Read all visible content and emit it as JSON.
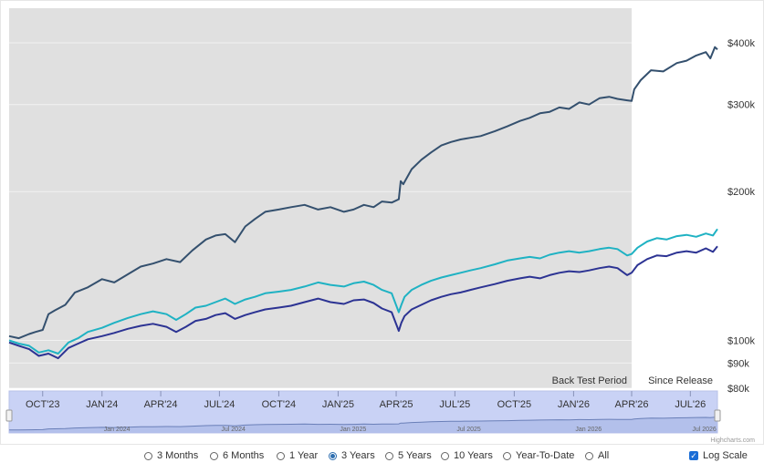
{
  "chart_data": {
    "type": "line",
    "y_scale": "log",
    "y_ticks": [
      {
        "value": 80000,
        "label": "$80k"
      },
      {
        "value": 90000,
        "label": "$90k"
      },
      {
        "value": 100000,
        "label": "$100k"
      },
      {
        "value": 200000,
        "label": "$200k"
      },
      {
        "value": 300000,
        "label": "$300k"
      },
      {
        "value": 400000,
        "label": "$400k"
      }
    ],
    "x_ticks": [
      "OCT'23",
      "JAN'24",
      "APR'24",
      "JUL'24",
      "OCT'24",
      "JAN'25",
      "APR'25",
      "JUL'25",
      "OCT'25",
      "JAN'26",
      "APR'26",
      "JUL'26"
    ],
    "x_tick_dates": [
      "2023-10-01",
      "2024-01-01",
      "2024-04-01",
      "2024-07-01",
      "2024-10-01",
      "2025-01-01",
      "2025-04-01",
      "2025-07-01",
      "2025-10-01",
      "2026-01-01",
      "2026-04-01",
      "2026-07-01"
    ],
    "x_range": [
      "2023-08-10",
      "2026-08-12"
    ],
    "bands": [
      {
        "label": "Back Test Period",
        "from": "2023-08-10",
        "to": "2026-04-01",
        "color": "#e0e0e0"
      },
      {
        "label": "Since Release",
        "from": "2026-04-01",
        "to": "2026-08-12",
        "color": "#ffffff"
      }
    ],
    "series": [
      {
        "color": "#34506e",
        "points": [
          [
            "2023-08-10",
            102000
          ],
          [
            "2023-08-25",
            101000
          ],
          [
            "2023-09-10",
            103000
          ],
          [
            "2023-09-20",
            104000
          ],
          [
            "2023-10-01",
            105000
          ],
          [
            "2023-10-10",
            113000
          ],
          [
            "2023-10-20",
            115000
          ],
          [
            "2023-11-05",
            118000
          ],
          [
            "2023-11-20",
            125000
          ],
          [
            "2023-12-10",
            128000
          ],
          [
            "2024-01-01",
            133000
          ],
          [
            "2024-01-20",
            131000
          ],
          [
            "2024-02-10",
            136000
          ],
          [
            "2024-03-01",
            141000
          ],
          [
            "2024-03-20",
            143000
          ],
          [
            "2024-04-10",
            146000
          ],
          [
            "2024-05-01",
            144000
          ],
          [
            "2024-05-20",
            152000
          ],
          [
            "2024-06-10",
            160000
          ],
          [
            "2024-06-25",
            163000
          ],
          [
            "2024-07-10",
            164000
          ],
          [
            "2024-07-25",
            158000
          ],
          [
            "2024-08-10",
            170000
          ],
          [
            "2024-08-25",
            176000
          ],
          [
            "2024-09-10",
            182000
          ],
          [
            "2024-10-01",
            184000
          ],
          [
            "2024-10-20",
            186000
          ],
          [
            "2024-11-10",
            188000
          ],
          [
            "2024-12-01",
            184000
          ],
          [
            "2024-12-20",
            186000
          ],
          [
            "2025-01-10",
            182000
          ],
          [
            "2025-01-25",
            184000
          ],
          [
            "2025-02-10",
            188000
          ],
          [
            "2025-02-25",
            186000
          ],
          [
            "2025-03-10",
            191000
          ],
          [
            "2025-03-25",
            190000
          ],
          [
            "2025-04-05",
            193000
          ],
          [
            "2025-04-08",
            210000
          ],
          [
            "2025-04-12",
            207000
          ],
          [
            "2025-04-25",
            222000
          ],
          [
            "2025-05-10",
            232000
          ],
          [
            "2025-05-25",
            240000
          ],
          [
            "2025-06-10",
            248000
          ],
          [
            "2025-06-25",
            252000
          ],
          [
            "2025-07-10",
            255000
          ],
          [
            "2025-07-25",
            257000
          ],
          [
            "2025-08-10",
            259000
          ],
          [
            "2025-09-01",
            265000
          ],
          [
            "2025-09-20",
            271000
          ],
          [
            "2025-10-10",
            278000
          ],
          [
            "2025-10-25",
            282000
          ],
          [
            "2025-11-10",
            288000
          ],
          [
            "2025-11-25",
            290000
          ],
          [
            "2025-12-10",
            296000
          ],
          [
            "2025-12-25",
            294000
          ],
          [
            "2026-01-10",
            303000
          ],
          [
            "2026-01-25",
            300000
          ],
          [
            "2026-02-10",
            309000
          ],
          [
            "2026-02-25",
            311000
          ],
          [
            "2026-03-10",
            308000
          ],
          [
            "2026-03-25",
            306000
          ],
          [
            "2026-04-01",
            305000
          ],
          [
            "2026-04-05",
            322000
          ],
          [
            "2026-04-15",
            336000
          ],
          [
            "2026-05-01",
            352000
          ],
          [
            "2026-05-20",
            350000
          ],
          [
            "2026-06-10",
            364000
          ],
          [
            "2026-06-25",
            368000
          ],
          [
            "2026-07-10",
            377000
          ],
          [
            "2026-07-25",
            383000
          ],
          [
            "2026-08-01",
            372000
          ],
          [
            "2026-08-08",
            392000
          ],
          [
            "2026-08-12",
            388000
          ]
        ]
      },
      {
        "color": "#1fb2c3",
        "points": [
          [
            "2023-08-10",
            100000
          ],
          [
            "2023-08-25",
            98500
          ],
          [
            "2023-09-10",
            97500
          ],
          [
            "2023-09-25",
            94500
          ],
          [
            "2023-10-10",
            95500
          ],
          [
            "2023-10-25",
            94000
          ],
          [
            "2023-11-10",
            99000
          ],
          [
            "2023-11-25",
            101000
          ],
          [
            "2023-12-10",
            104000
          ],
          [
            "2024-01-01",
            106000
          ],
          [
            "2024-01-20",
            108500
          ],
          [
            "2024-02-10",
            111000
          ],
          [
            "2024-03-01",
            113000
          ],
          [
            "2024-03-20",
            114500
          ],
          [
            "2024-04-10",
            113000
          ],
          [
            "2024-04-25",
            110000
          ],
          [
            "2024-05-10",
            113000
          ],
          [
            "2024-05-25",
            116500
          ],
          [
            "2024-06-10",
            117500
          ],
          [
            "2024-06-25",
            119500
          ],
          [
            "2024-07-10",
            121500
          ],
          [
            "2024-07-25",
            118500
          ],
          [
            "2024-08-10",
            121000
          ],
          [
            "2024-08-25",
            122500
          ],
          [
            "2024-09-10",
            124500
          ],
          [
            "2024-10-01",
            125500
          ],
          [
            "2024-10-20",
            126500
          ],
          [
            "2024-11-10",
            128500
          ],
          [
            "2024-12-01",
            131000
          ],
          [
            "2024-12-20",
            129500
          ],
          [
            "2025-01-10",
            128500
          ],
          [
            "2025-01-25",
            130500
          ],
          [
            "2025-02-10",
            131500
          ],
          [
            "2025-02-25",
            129500
          ],
          [
            "2025-03-10",
            126500
          ],
          [
            "2025-03-25",
            124500
          ],
          [
            "2025-04-05",
            114000
          ],
          [
            "2025-04-09",
            118000
          ],
          [
            "2025-04-14",
            122500
          ],
          [
            "2025-04-25",
            126500
          ],
          [
            "2025-05-10",
            129500
          ],
          [
            "2025-05-25",
            132000
          ],
          [
            "2025-06-10",
            134000
          ],
          [
            "2025-06-25",
            135500
          ],
          [
            "2025-07-10",
            137000
          ],
          [
            "2025-07-25",
            138500
          ],
          [
            "2025-08-10",
            140000
          ],
          [
            "2025-09-01",
            142500
          ],
          [
            "2025-09-20",
            145000
          ],
          [
            "2025-10-10",
            146500
          ],
          [
            "2025-10-25",
            147500
          ],
          [
            "2025-11-10",
            146500
          ],
          [
            "2025-11-25",
            149000
          ],
          [
            "2025-12-10",
            150500
          ],
          [
            "2025-12-25",
            151500
          ],
          [
            "2026-01-10",
            150500
          ],
          [
            "2026-01-25",
            151500
          ],
          [
            "2026-02-10",
            153000
          ],
          [
            "2026-02-25",
            154000
          ],
          [
            "2026-03-10",
            153000
          ],
          [
            "2026-03-25",
            148500
          ],
          [
            "2026-04-01",
            149500
          ],
          [
            "2026-04-10",
            154000
          ],
          [
            "2026-04-25",
            158500
          ],
          [
            "2026-05-10",
            161000
          ],
          [
            "2026-05-25",
            160000
          ],
          [
            "2026-06-10",
            162500
          ],
          [
            "2026-06-25",
            163500
          ],
          [
            "2026-07-10",
            162000
          ],
          [
            "2026-07-25",
            164500
          ],
          [
            "2026-08-05",
            163000
          ],
          [
            "2026-08-12",
            168000
          ]
        ]
      },
      {
        "color": "#2c3393",
        "points": [
          [
            "2023-08-10",
            99000
          ],
          [
            "2023-08-25",
            97500
          ],
          [
            "2023-09-10",
            96000
          ],
          [
            "2023-09-25",
            93000
          ],
          [
            "2023-10-10",
            94000
          ],
          [
            "2023-10-25",
            92000
          ],
          [
            "2023-11-10",
            96500
          ],
          [
            "2023-11-25",
            98500
          ],
          [
            "2023-12-10",
            100500
          ],
          [
            "2024-01-01",
            102000
          ],
          [
            "2024-01-20",
            103500
          ],
          [
            "2024-02-10",
            105500
          ],
          [
            "2024-03-01",
            107000
          ],
          [
            "2024-03-20",
            108000
          ],
          [
            "2024-04-10",
            106500
          ],
          [
            "2024-04-25",
            104000
          ],
          [
            "2024-05-10",
            106500
          ],
          [
            "2024-05-25",
            109500
          ],
          [
            "2024-06-10",
            110500
          ],
          [
            "2024-06-25",
            112500
          ],
          [
            "2024-07-10",
            113500
          ],
          [
            "2024-07-25",
            110500
          ],
          [
            "2024-08-10",
            112500
          ],
          [
            "2024-08-25",
            114000
          ],
          [
            "2024-09-10",
            115500
          ],
          [
            "2024-10-01",
            116500
          ],
          [
            "2024-10-20",
            117500
          ],
          [
            "2024-11-10",
            119500
          ],
          [
            "2024-12-01",
            121500
          ],
          [
            "2024-12-20",
            119500
          ],
          [
            "2025-01-10",
            118500
          ],
          [
            "2025-01-25",
            120500
          ],
          [
            "2025-02-10",
            121000
          ],
          [
            "2025-02-25",
            119000
          ],
          [
            "2025-03-10",
            116000
          ],
          [
            "2025-03-25",
            114000
          ],
          [
            "2025-04-05",
            104500
          ],
          [
            "2025-04-09",
            108500
          ],
          [
            "2025-04-14",
            112000
          ],
          [
            "2025-04-25",
            115500
          ],
          [
            "2025-05-10",
            118000
          ],
          [
            "2025-05-25",
            120500
          ],
          [
            "2025-06-10",
            122500
          ],
          [
            "2025-06-25",
            124000
          ],
          [
            "2025-07-10",
            125000
          ],
          [
            "2025-07-25",
            126500
          ],
          [
            "2025-08-10",
            128000
          ],
          [
            "2025-09-01",
            130000
          ],
          [
            "2025-09-20",
            132000
          ],
          [
            "2025-10-10",
            133500
          ],
          [
            "2025-10-25",
            134500
          ],
          [
            "2025-11-10",
            133500
          ],
          [
            "2025-11-25",
            135500
          ],
          [
            "2025-12-10",
            137000
          ],
          [
            "2025-12-25",
            138000
          ],
          [
            "2026-01-10",
            137500
          ],
          [
            "2026-01-25",
            138500
          ],
          [
            "2026-02-10",
            140000
          ],
          [
            "2026-02-25",
            141000
          ],
          [
            "2026-03-10",
            140000
          ],
          [
            "2026-03-25",
            135500
          ],
          [
            "2026-04-01",
            137000
          ],
          [
            "2026-04-10",
            142000
          ],
          [
            "2026-04-25",
            146000
          ],
          [
            "2026-05-10",
            148500
          ],
          [
            "2026-05-25",
            148000
          ],
          [
            "2026-06-10",
            150500
          ],
          [
            "2026-06-25",
            151500
          ],
          [
            "2026-07-10",
            150500
          ],
          [
            "2026-07-25",
            153500
          ],
          [
            "2026-08-05",
            151000
          ],
          [
            "2026-08-12",
            155000
          ]
        ]
      }
    ],
    "navigator": {
      "labels": [
        "Jan 2024",
        "Jul 2024",
        "Jan 2025",
        "Jul 2025",
        "Jan 2026",
        "Jul 2026"
      ],
      "label_dates": [
        "2024-01-01",
        "2024-07-01",
        "2025-01-01",
        "2025-07-01",
        "2026-01-01",
        "2026-07-01"
      ],
      "line_color": "#6a7fb8",
      "fill_color": "#c9d2f5"
    },
    "credit": "Highcharts.com"
  },
  "controls": {
    "ranges": [
      {
        "label": "3 Months",
        "selected": false
      },
      {
        "label": "6 Months",
        "selected": false
      },
      {
        "label": "1 Year",
        "selected": false
      },
      {
        "label": "3 Years",
        "selected": true
      },
      {
        "label": "5 Years",
        "selected": false
      },
      {
        "label": "10 Years",
        "selected": false
      },
      {
        "label": "Year-To-Date",
        "selected": false
      },
      {
        "label": "All",
        "selected": false
      }
    ],
    "log_scale": {
      "label": "Log Scale",
      "checked": true
    }
  }
}
